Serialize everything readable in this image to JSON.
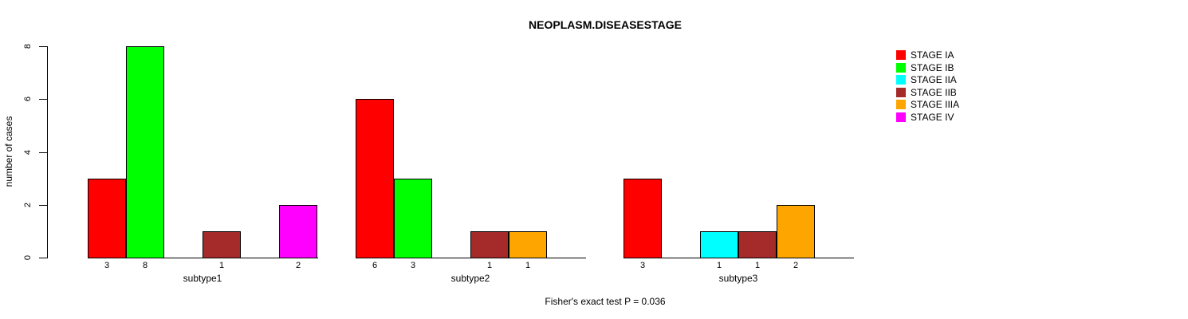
{
  "header": {
    "title": "NEOPLASM.DISEASESTAGE"
  },
  "y_axis": {
    "label": "number of cases",
    "tick_labels": [
      "0",
      "2",
      "4",
      "6",
      "8"
    ]
  },
  "footer": {
    "caption": "Fisher's exact test P = 0.036"
  },
  "chart_data": {
    "type": "bar",
    "title": "NEOPLASM.DISEASESTAGE",
    "xlabel": "",
    "ylabel": "number of cases",
    "ylim": [
      0,
      8
    ],
    "yticks": [
      0,
      2,
      4,
      6,
      8
    ],
    "grid": false,
    "legend_position": "right",
    "bar_value_labels": true,
    "categories": [
      "subtype1",
      "subtype2",
      "subtype3"
    ],
    "series": [
      {
        "name": "STAGE IA",
        "color": "#ff0000",
        "values": [
          3,
          6,
          3
        ]
      },
      {
        "name": "STAGE IB",
        "color": "#00ff00",
        "values": [
          8,
          3,
          0
        ]
      },
      {
        "name": "STAGE IIA",
        "color": "#00ffff",
        "values": [
          0,
          0,
          1
        ]
      },
      {
        "name": "STAGE IIB",
        "color": "#a52a2a",
        "values": [
          1,
          1,
          1
        ]
      },
      {
        "name": "STAGE IIIA",
        "color": "#ffa500",
        "values": [
          0,
          1,
          2
        ]
      },
      {
        "name": "STAGE IV",
        "color": "#ff00ff",
        "values": [
          2,
          0,
          0
        ]
      }
    ],
    "annotation": "Fisher's exact test P = 0.036"
  }
}
